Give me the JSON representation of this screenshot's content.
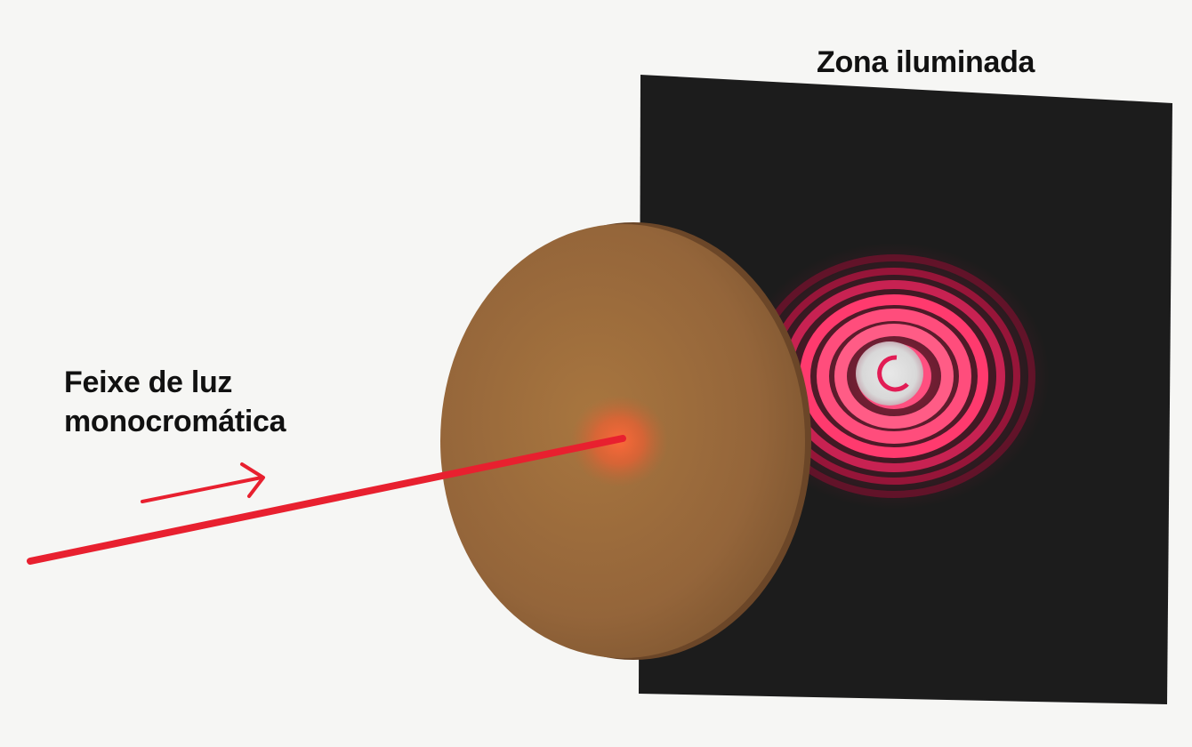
{
  "labels": {
    "illuminated_zone": "Zona iluminada",
    "beam_line1": "Feixe de luz",
    "beam_line2": "monocromática"
  },
  "colors": {
    "background": "#f6f6f4",
    "screen": "#1c1c1c",
    "disk": "#9a6a3c",
    "beam": "#e8202f",
    "rings": "#ff3a6a",
    "center_spot": "#dedede"
  },
  "icons": {
    "direction_arrow": "arrow-right-icon"
  }
}
